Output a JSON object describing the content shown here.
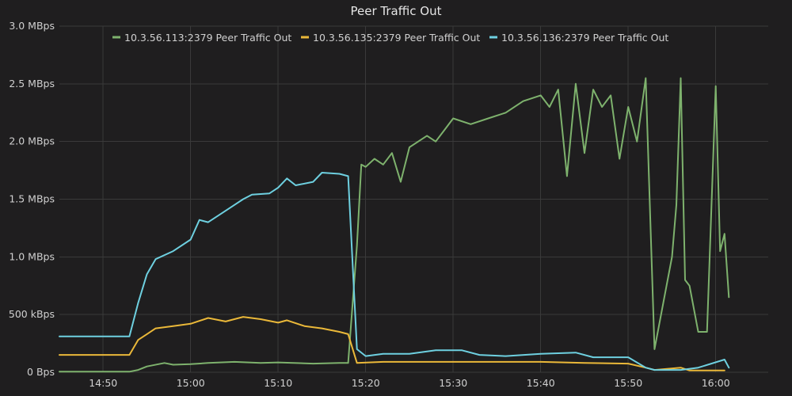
{
  "chart_data": {
    "type": "line",
    "title": "Peer Traffic Out",
    "xlabel": "",
    "ylabel": "",
    "x_domain_minutes": [
      14.1,
      20.3
    ],
    "ylim": [
      0,
      3000
    ],
    "y_unit": "kBps",
    "x_ticks": [
      {
        "t": 14.83,
        "label": "14:50"
      },
      {
        "t": 15.0,
        "label": "15:00"
      },
      {
        "t": 15.17,
        "label": "15:10"
      },
      {
        "t": 15.33,
        "label": "15:20"
      },
      {
        "t": 15.5,
        "label": "15:30"
      },
      {
        "t": 15.67,
        "label": "15:40"
      },
      {
        "t": 15.83,
        "label": "15:50"
      },
      {
        "t": 16.0,
        "label": "16:00"
      }
    ],
    "y_ticks": [
      {
        "v": 0,
        "label": "0 Bps"
      },
      {
        "v": 500,
        "label": "500 kBps"
      },
      {
        "v": 1000,
        "label": "1.0 MBps"
      },
      {
        "v": 1500,
        "label": "1.5 MBps"
      },
      {
        "v": 2000,
        "label": "2.0 MBps"
      },
      {
        "v": 2500,
        "label": "2.5 MBps"
      },
      {
        "v": 3000,
        "label": "3.0 MBps"
      }
    ],
    "grid": true,
    "legend_position": "top-center",
    "series": [
      {
        "name": "10.3.56.113:2379 Peer Traffic Out",
        "color": "#7eb26d",
        "points": [
          [
            "14:45",
            5
          ],
          [
            "14:53",
            5
          ],
          [
            "14:54",
            20
          ],
          [
            "14:55",
            50
          ],
          [
            "14:57",
            80
          ],
          [
            "14:58",
            65
          ],
          [
            "15:00",
            70
          ],
          [
            "15:02",
            80
          ],
          [
            "15:05",
            90
          ],
          [
            "15:08",
            80
          ],
          [
            "15:10",
            85
          ],
          [
            "15:14",
            75
          ],
          [
            "15:17",
            80
          ],
          [
            "15:18",
            80
          ],
          [
            "15:19",
            1100
          ],
          [
            "15:19.5",
            1800
          ],
          [
            "15:20",
            1780
          ],
          [
            "15:21",
            1850
          ],
          [
            "15:22",
            1800
          ],
          [
            "15:23",
            1900
          ],
          [
            "15:24",
            1650
          ],
          [
            "15:25",
            1950
          ],
          [
            "15:27",
            2050
          ],
          [
            "15:28",
            2000
          ],
          [
            "15:29",
            2100
          ],
          [
            "15:30",
            2200
          ],
          [
            "15:32",
            2150
          ],
          [
            "15:34",
            2200
          ],
          [
            "15:36",
            2250
          ],
          [
            "15:38",
            2350
          ],
          [
            "15:40",
            2400
          ],
          [
            "15:41",
            2300
          ],
          [
            "15:42",
            2450
          ],
          [
            "15:43",
            1700
          ],
          [
            "15:44",
            2500
          ],
          [
            "15:45",
            1900
          ],
          [
            "15:46",
            2450
          ],
          [
            "15:47",
            2300
          ],
          [
            "15:48",
            2400
          ],
          [
            "15:49",
            1850
          ],
          [
            "15:50",
            2300
          ],
          [
            "15:51",
            2000
          ],
          [
            "15:52",
            2550
          ],
          [
            "15:53",
            200
          ],
          [
            "15:55",
            1000
          ],
          [
            "15:55.5",
            1450
          ],
          [
            "15:56",
            2550
          ],
          [
            "15:56.5",
            800
          ],
          [
            "15:57",
            750
          ],
          [
            "15:58",
            350
          ],
          [
            "15:59",
            350
          ],
          [
            "16:00",
            2480
          ],
          [
            "16:00.5",
            1050
          ],
          [
            "16:01",
            1200
          ],
          [
            "16:01.5",
            650
          ]
        ]
      },
      {
        "name": "10.3.56.135:2379 Peer Traffic Out",
        "color": "#eab839",
        "points": [
          [
            "14:45",
            150
          ],
          [
            "14:53",
            150
          ],
          [
            "14:54",
            280
          ],
          [
            "14:55",
            330
          ],
          [
            "14:56",
            380
          ],
          [
            "14:58",
            400
          ],
          [
            "15:00",
            420
          ],
          [
            "15:02",
            470
          ],
          [
            "15:04",
            440
          ],
          [
            "15:06",
            480
          ],
          [
            "15:08",
            460
          ],
          [
            "15:10",
            430
          ],
          [
            "15:11",
            450
          ],
          [
            "15:13",
            400
          ],
          [
            "15:15",
            380
          ],
          [
            "15:17",
            350
          ],
          [
            "15:18",
            330
          ],
          [
            "15:19",
            80
          ],
          [
            "15:22",
            90
          ],
          [
            "15:30",
            90
          ],
          [
            "15:40",
            90
          ],
          [
            "15:45",
            80
          ],
          [
            "15:50",
            75
          ],
          [
            "15:52",
            40
          ],
          [
            "15:53",
            20
          ],
          [
            "15:56",
            40
          ],
          [
            "15:57",
            15
          ],
          [
            "16:01",
            15
          ]
        ]
      },
      {
        "name": "10.3.56.136:2379 Peer Traffic Out",
        "color": "#6ed0e0",
        "points": [
          [
            "14:45",
            310
          ],
          [
            "14:53",
            310
          ],
          [
            "14:54",
            600
          ],
          [
            "14:55",
            850
          ],
          [
            "14:56",
            980
          ],
          [
            "14:58",
            1050
          ],
          [
            "15:00",
            1150
          ],
          [
            "15:01",
            1320
          ],
          [
            "15:02",
            1300
          ],
          [
            "15:04",
            1400
          ],
          [
            "15:06",
            1500
          ],
          [
            "15:07",
            1540
          ],
          [
            "15:09",
            1550
          ],
          [
            "15:10",
            1600
          ],
          [
            "15:11",
            1680
          ],
          [
            "15:12",
            1620
          ],
          [
            "15:14",
            1650
          ],
          [
            "15:15",
            1730
          ],
          [
            "15:17",
            1720
          ],
          [
            "15:18",
            1700
          ],
          [
            "15:19",
            200
          ],
          [
            "15:20",
            140
          ],
          [
            "15:22",
            160
          ],
          [
            "15:25",
            160
          ],
          [
            "15:28",
            190
          ],
          [
            "15:31",
            190
          ],
          [
            "15:33",
            150
          ],
          [
            "15:36",
            140
          ],
          [
            "15:40",
            160
          ],
          [
            "15:44",
            170
          ],
          [
            "15:46",
            130
          ],
          [
            "15:50",
            130
          ],
          [
            "15:52",
            40
          ],
          [
            "15:53",
            20
          ],
          [
            "15:56",
            20
          ],
          [
            "15:58",
            40
          ],
          [
            "16:01",
            110
          ],
          [
            "16:01.5",
            40
          ]
        ]
      }
    ]
  }
}
